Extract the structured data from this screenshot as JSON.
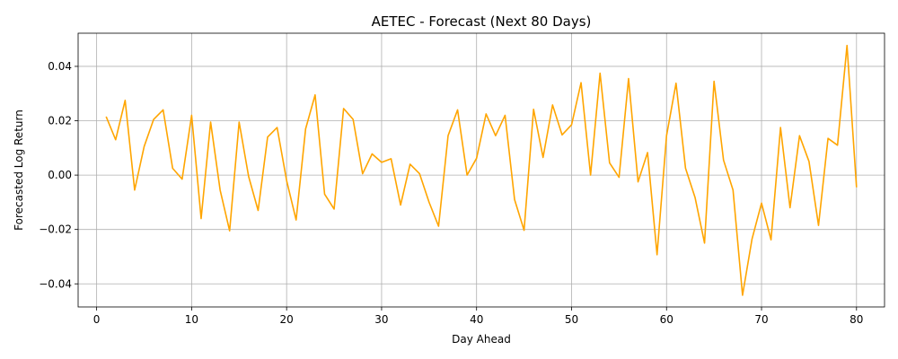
{
  "chart_data": {
    "type": "line",
    "title": "AETEC - Forecast (Next 80 Days)",
    "xlabel": "Day Ahead",
    "ylabel": "Forecasted Log Return",
    "xlim": [
      -1.95,
      82.95
    ],
    "ylim": [
      -0.0485,
      0.0522
    ],
    "xticks": [
      0,
      10,
      20,
      30,
      40,
      50,
      60,
      70,
      80
    ],
    "xtick_labels": [
      "0",
      "10",
      "20",
      "30",
      "40",
      "50",
      "60",
      "70",
      "80"
    ],
    "yticks": [
      -0.04,
      -0.02,
      0.0,
      0.02,
      0.04
    ],
    "ytick_labels": [
      "−0.04",
      "−0.02",
      "0.00",
      "0.02",
      "0.04"
    ],
    "grid": true,
    "color": "#FFA500",
    "x": [
      1,
      2,
      3,
      4,
      5,
      6,
      7,
      8,
      9,
      10,
      11,
      12,
      13,
      14,
      15,
      16,
      17,
      18,
      19,
      20,
      21,
      22,
      23,
      24,
      25,
      26,
      27,
      28,
      29,
      30,
      31,
      32,
      33,
      34,
      35,
      36,
      37,
      38,
      39,
      40,
      41,
      42,
      43,
      44,
      45,
      46,
      47,
      48,
      49,
      50,
      51,
      52,
      53,
      54,
      55,
      56,
      57,
      58,
      59,
      60,
      61,
      62,
      63,
      64,
      65,
      66,
      67,
      68,
      69,
      70,
      71,
      72,
      73,
      74,
      75,
      76,
      77,
      78,
      79,
      80
    ],
    "series": [
      {
        "values": [
          0.0215,
          0.013,
          0.0275,
          -0.0055,
          0.0105,
          0.0205,
          0.024,
          0.0025,
          -0.0015,
          0.022,
          -0.016,
          0.0195,
          -0.0055,
          -0.0205,
          0.0195,
          -0.0005,
          -0.013,
          0.014,
          0.0175,
          -0.002,
          -0.0165,
          0.017,
          0.0295,
          -0.007,
          -0.0125,
          0.0245,
          0.0205,
          0.0005,
          0.0078,
          0.0047,
          0.006,
          -0.011,
          0.004,
          0.0005,
          -0.01,
          -0.0188,
          0.0145,
          0.024,
          0.0,
          0.0062,
          0.0225,
          0.0145,
          0.022,
          -0.009,
          -0.0203,
          0.0242,
          0.0065,
          0.0258,
          0.0148,
          0.0185,
          0.034,
          0.0,
          0.0375,
          0.0045,
          -0.0008,
          0.0355,
          -0.0025,
          0.0083,
          -0.0293,
          0.0145,
          0.0338,
          0.0025,
          -0.0082,
          -0.025,
          0.0345,
          0.0055,
          -0.0055,
          -0.0442,
          -0.0235,
          -0.0103,
          -0.0238,
          0.0175,
          -0.012,
          0.0145,
          0.005,
          -0.0185,
          0.0135,
          0.011,
          0.0477,
          -0.0045
        ]
      }
    ]
  }
}
